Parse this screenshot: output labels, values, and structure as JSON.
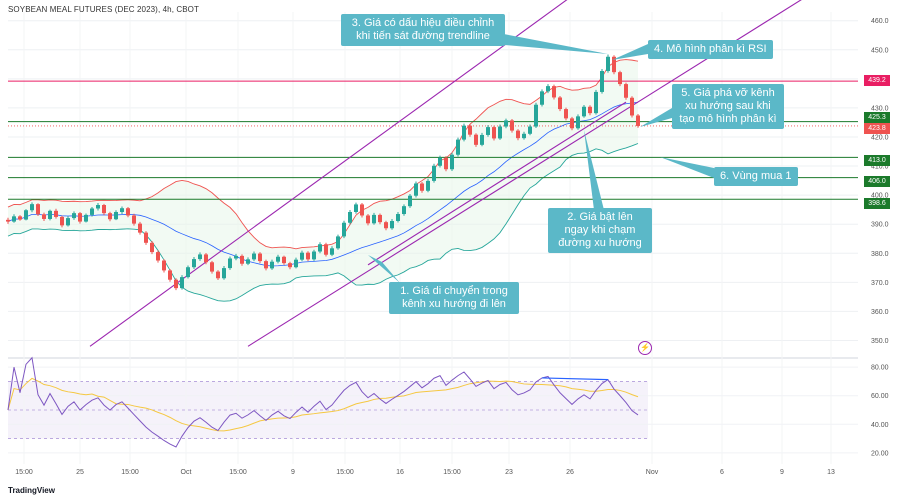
{
  "header": {
    "title": "SOYBEAN MEAL FUTURES (DEC 2023), 4h, CBOT"
  },
  "footer": {
    "brand": "TradingView"
  },
  "icons": {
    "brand_logo": "tradingview-logo-icon",
    "alert": "lightning-icon"
  },
  "colors": {
    "up": "#26a69a",
    "down": "#ef5350",
    "channel": "#9c27b0",
    "resistance": "#e91e63",
    "support": "#1b7a2b",
    "callout": "#5bb8c8",
    "rsi_line": "#7e57c2",
    "rsi_ma": "#f5c842",
    "bb_upper": "#ef5350",
    "bb_lower": "#26a69a",
    "bb_basis": "#2962ff"
  },
  "annotations": [
    {
      "id": "a1",
      "text": "1. Giá di chuyển trong kênh xu hướng đi lên"
    },
    {
      "id": "a2",
      "text": "2. Giá bật lên ngay khi chạm đường xu hướng"
    },
    {
      "id": "a3",
      "text": "3. Giá có dấu hiệu điều chỉnh khi tiến sát đường trendline"
    },
    {
      "id": "a4",
      "text": "4. Mô hình phân kì RSI"
    },
    {
      "id": "a5",
      "text": "5. Giá phá vỡ kênh xu hướng sau khi tạo mô hình phân kì"
    },
    {
      "id": "a6",
      "text": "6. Vùng mua 1"
    }
  ],
  "chart_data": [
    {
      "type": "candlestick",
      "symbol": "SOYBEAN MEAL FUTURES (DEC 2023), 4h, CBOT",
      "y_ticks": [
        "460.0",
        "450.0",
        "440.0",
        "430.0",
        "420.0",
        "410.0",
        "400.0",
        "390.0",
        "380.0",
        "370.0",
        "360.0",
        "350.0"
      ],
      "x_ticks": [
        "15:00",
        "25",
        "15:00",
        "Oct",
        "15:00",
        "9",
        "15:00",
        "16",
        "15:00",
        "23",
        "26",
        "Nov",
        "6",
        "9",
        "13"
      ],
      "ylim": [
        345,
        463
      ],
      "grid": true,
      "horizontal_levels": [
        {
          "price": 439.2,
          "label": "439.2",
          "role": "resistance"
        },
        {
          "price": 425.3,
          "label": "425.3",
          "role": "support"
        },
        {
          "price": 413.0,
          "label": "413.0",
          "role": "support"
        },
        {
          "price": 406.0,
          "label": "406.0",
          "role": "support"
        },
        {
          "price": 398.6,
          "label": "398.6",
          "role": "support"
        }
      ],
      "last_price": {
        "price": 423.8,
        "label": "423.8"
      },
      "trend_channel": [
        {
          "from": {
            "i": 0,
            "price": 348
          },
          "to": {
            "i": 99,
            "price": 476
          }
        },
        {
          "from": {
            "i": 40,
            "price": 348
          },
          "to": {
            "i": 139,
            "price": 476
          }
        },
        {
          "from": {
            "i": 60,
            "price": 376
          },
          "to": {
            "i": 103,
            "price": 432
          }
        }
      ],
      "candles": [
        [
          391.5,
          392.2,
          390.1,
          390.9
        ],
        [
          390.9,
          393.4,
          390.5,
          392.7
        ],
        [
          392.7,
          393.1,
          391.2,
          391.6
        ],
        [
          391.6,
          395.2,
          391.3,
          394.8
        ],
        [
          394.8,
          397.5,
          394.1,
          396.9
        ],
        [
          396.9,
          397.2,
          392.8,
          393.4
        ],
        [
          393.4,
          394.0,
          391.1,
          391.8
        ],
        [
          391.8,
          395.0,
          391.3,
          394.6
        ],
        [
          394.6,
          395.3,
          391.9,
          392.5
        ],
        [
          392.5,
          392.9,
          388.9,
          389.6
        ],
        [
          389.6,
          392.8,
          389.2,
          392.1
        ],
        [
          392.1,
          394.4,
          391.5,
          393.8
        ],
        [
          393.8,
          394.2,
          390.2,
          390.9
        ],
        [
          390.9,
          393.7,
          390.6,
          393.2
        ],
        [
          393.2,
          395.9,
          392.6,
          395.4
        ],
        [
          395.4,
          397.3,
          394.7,
          396.6
        ],
        [
          396.6,
          397.0,
          393.1,
          393.8
        ],
        [
          393.8,
          394.3,
          391.0,
          391.7
        ],
        [
          391.7,
          394.8,
          391.4,
          394.2
        ],
        [
          394.2,
          396.1,
          393.5,
          395.5
        ],
        [
          395.5,
          395.9,
          392.4,
          393.0
        ],
        [
          393.0,
          393.6,
          389.5,
          390.2
        ],
        [
          390.2,
          390.8,
          386.4,
          387.1
        ],
        [
          387.1,
          387.6,
          382.9,
          383.6
        ],
        [
          383.6,
          384.2,
          379.7,
          380.4
        ],
        [
          380.4,
          381.0,
          376.8,
          377.5
        ],
        [
          377.5,
          378.0,
          373.4,
          374.1
        ],
        [
          374.1,
          374.6,
          370.2,
          370.9
        ],
        [
          370.9,
          371.4,
          367.3,
          368.0
        ],
        [
          368.0,
          372.5,
          367.5,
          371.8
        ],
        [
          371.8,
          375.8,
          371.3,
          375.2
        ],
        [
          375.2,
          378.7,
          374.6,
          378.0
        ],
        [
          378.0,
          380.3,
          377.4,
          379.6
        ],
        [
          379.6,
          380.1,
          376.2,
          376.9
        ],
        [
          376.9,
          377.4,
          373.0,
          373.7
        ],
        [
          373.7,
          374.2,
          370.8,
          371.4
        ],
        [
          371.4,
          375.6,
          370.9,
          374.9
        ],
        [
          374.9,
          378.9,
          374.3,
          378.2
        ],
        [
          378.2,
          379.8,
          377.6,
          379.1
        ],
        [
          379.1,
          379.6,
          375.7,
          376.4
        ],
        [
          376.4,
          378.6,
          375.9,
          377.9
        ],
        [
          377.9,
          380.6,
          377.3,
          379.9
        ],
        [
          379.9,
          380.4,
          376.6,
          377.3
        ],
        [
          377.3,
          377.8,
          374.1,
          374.8
        ],
        [
          374.8,
          377.8,
          374.3,
          377.1
        ],
        [
          377.1,
          379.5,
          376.5,
          378.8
        ],
        [
          378.8,
          379.2,
          376.0,
          376.6
        ],
        [
          376.6,
          377.1,
          374.5,
          375.2
        ],
        [
          375.2,
          378.5,
          374.8,
          377.8
        ],
        [
          377.8,
          380.9,
          377.3,
          380.2
        ],
        [
          380.2,
          380.7,
          377.3,
          377.9
        ],
        [
          377.9,
          381.2,
          377.4,
          380.6
        ],
        [
          380.6,
          383.8,
          380.0,
          383.1
        ],
        [
          383.1,
          383.6,
          378.9,
          379.5
        ],
        [
          379.5,
          382.4,
          379.0,
          381.7
        ],
        [
          381.7,
          386.4,
          381.2,
          385.8
        ],
        [
          385.8,
          391.2,
          385.2,
          390.5
        ],
        [
          390.5,
          394.9,
          389.9,
          394.2
        ],
        [
          394.2,
          397.4,
          393.6,
          396.8
        ],
        [
          396.8,
          397.3,
          392.3,
          393.0
        ],
        [
          393.0,
          393.5,
          389.6,
          390.3
        ],
        [
          390.3,
          393.9,
          389.8,
          393.2
        ],
        [
          393.2,
          393.7,
          390.0,
          390.7
        ],
        [
          390.7,
          391.2,
          387.9,
          388.6
        ],
        [
          388.6,
          391.8,
          388.1,
          391.1
        ],
        [
          391.1,
          394.2,
          390.6,
          393.5
        ],
        [
          393.5,
          396.8,
          392.9,
          396.2
        ],
        [
          396.2,
          400.4,
          395.6,
          399.8
        ],
        [
          399.8,
          404.7,
          399.2,
          404.0
        ],
        [
          404.0,
          404.5,
          400.8,
          401.5
        ],
        [
          401.5,
          405.6,
          401.0,
          404.9
        ],
        [
          404.9,
          410.8,
          404.3,
          410.1
        ],
        [
          410.1,
          413.6,
          409.5,
          412.9
        ],
        [
          412.9,
          413.4,
          408.2,
          408.9
        ],
        [
          408.9,
          414.6,
          408.3,
          413.9
        ],
        [
          413.9,
          419.8,
          413.3,
          419.1
        ],
        [
          419.1,
          424.6,
          418.5,
          423.9
        ],
        [
          423.9,
          424.4,
          420.1,
          420.8
        ],
        [
          420.8,
          421.3,
          416.6,
          417.3
        ],
        [
          417.3,
          421.4,
          416.8,
          420.7
        ],
        [
          420.7,
          424.1,
          420.1,
          423.4
        ],
        [
          423.4,
          423.9,
          418.8,
          419.5
        ],
        [
          419.5,
          424.3,
          419.0,
          423.6
        ],
        [
          423.6,
          426.3,
          423.0,
          425.7
        ],
        [
          425.7,
          426.2,
          421.5,
          422.2
        ],
        [
          422.2,
          422.7,
          418.9,
          419.6
        ],
        [
          419.6,
          421.8,
          419.1,
          421.1
        ],
        [
          421.1,
          424.3,
          420.6,
          423.6
        ],
        [
          423.6,
          431.8,
          423.1,
          431.1
        ],
        [
          431.1,
          436.4,
          430.5,
          435.7
        ],
        [
          435.7,
          438.2,
          435.1,
          437.5
        ],
        [
          437.5,
          438.0,
          432.9,
          433.6
        ],
        [
          433.6,
          434.1,
          428.9,
          429.6
        ],
        [
          429.6,
          430.1,
          425.7,
          426.4
        ],
        [
          426.4,
          426.9,
          422.3,
          423.0
        ],
        [
          423.0,
          427.8,
          422.5,
          427.1
        ],
        [
          427.1,
          431.0,
          426.6,
          430.4
        ],
        [
          430.4,
          430.9,
          427.5,
          428.2
        ],
        [
          428.2,
          436.2,
          427.7,
          435.5
        ],
        [
          435.5,
          443.4,
          434.9,
          442.7
        ],
        [
          442.7,
          448.4,
          442.1,
          447.6
        ],
        [
          447.6,
          448.1,
          441.6,
          442.3
        ],
        [
          442.3,
          442.8,
          437.5,
          438.2
        ],
        [
          438.2,
          438.7,
          432.8,
          433.5
        ],
        [
          433.5,
          434.0,
          426.7,
          427.4
        ],
        [
          427.4,
          427.9,
          423.2,
          423.8
        ]
      ]
    },
    {
      "type": "line",
      "name": "RSI",
      "y_ticks": [
        "80.00",
        "60.00",
        "40.00",
        "20.00"
      ],
      "ylim": [
        15,
        85
      ],
      "overbought": 70,
      "oversold": 30,
      "divergence": {
        "from_index": 89,
        "to_index": 100
      }
    }
  ]
}
